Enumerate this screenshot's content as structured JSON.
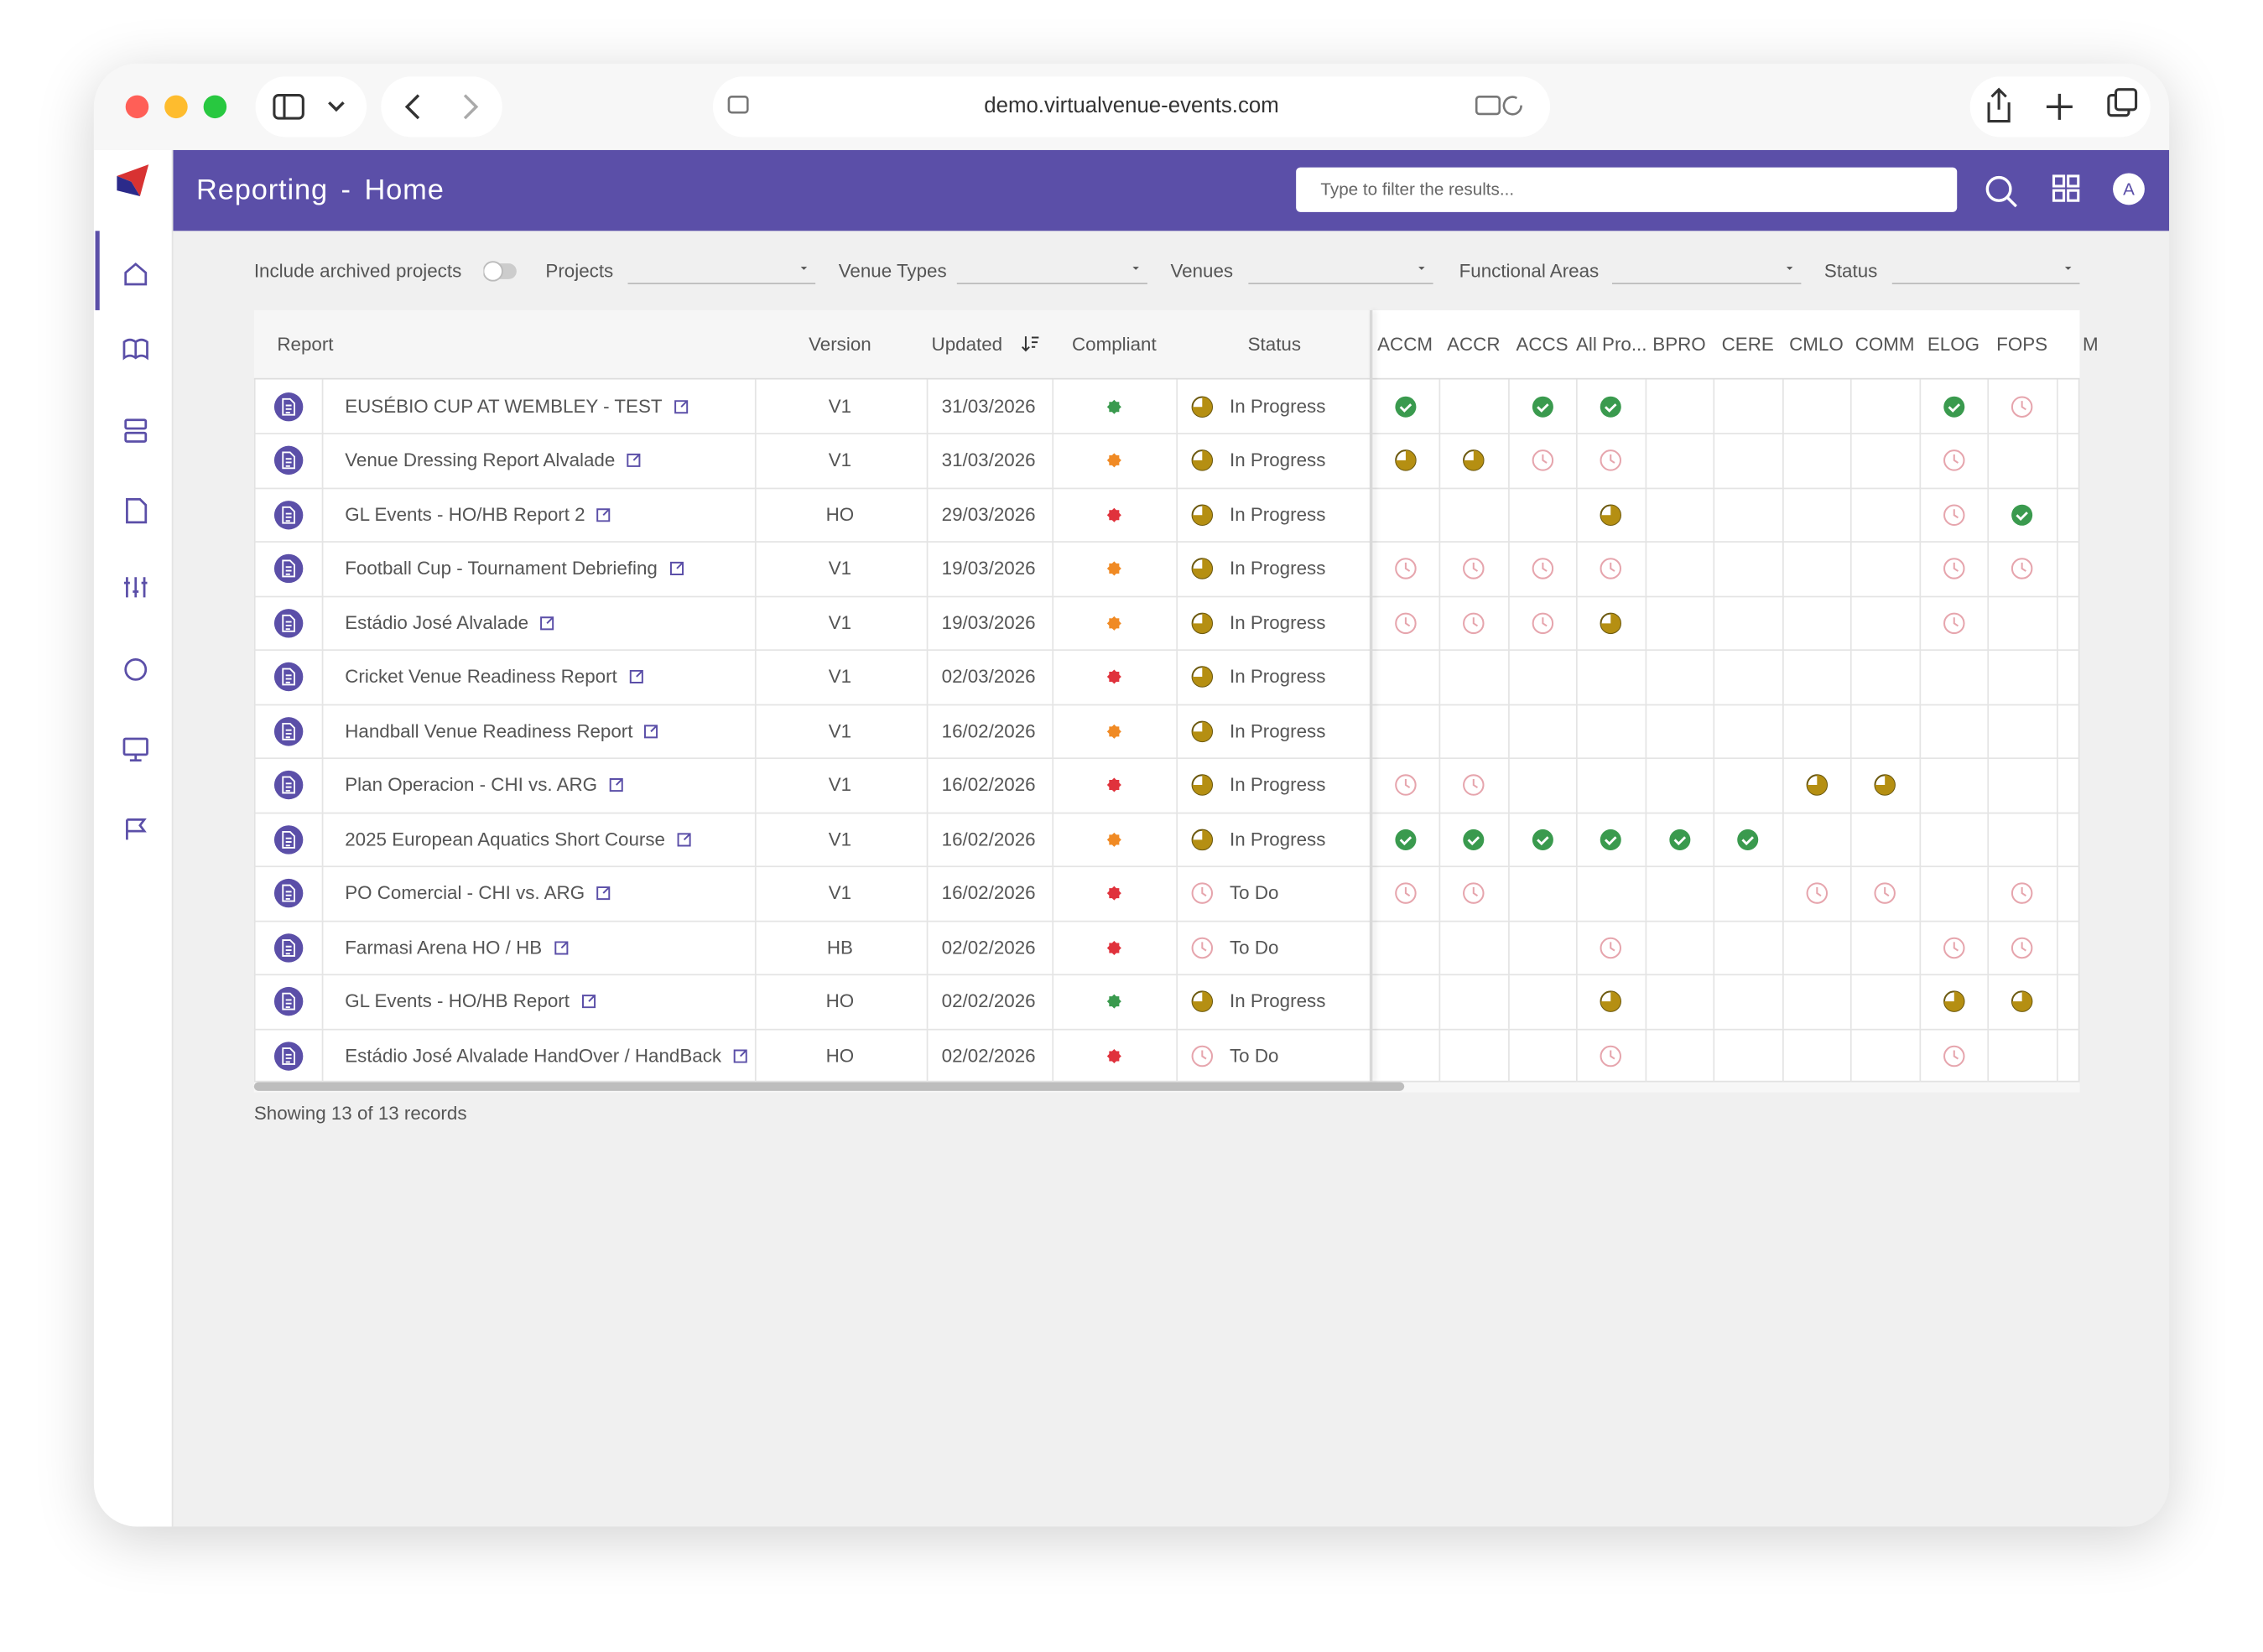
{
  "browser": {
    "url": "demo.virtualvenue-events.com"
  },
  "header": {
    "title": "Reporting - Home",
    "search_placeholder": "Type to filter the results...",
    "avatar": "A"
  },
  "filters": {
    "archived": "Include archived projects",
    "labels": [
      "Projects",
      "Venue Types",
      "Venues",
      "Functional Areas",
      "Status"
    ]
  },
  "table": {
    "columns": [
      "Report",
      "Version",
      "Updated",
      "Compliant",
      "Status"
    ],
    "functional_areas": [
      "ACCM",
      "ACCR",
      "ACCS",
      "All Pro...",
      "BPRO",
      "CERE",
      "CMLO",
      "COMM",
      "ELOG",
      "FOPS",
      "M"
    ],
    "rows": [
      [
        "EUSÉBIO CUP AT WEMBLEY - TEST",
        "V1",
        "31/03/2026",
        "In Progress"
      ],
      [
        "Venue Dressing Report Alvalade",
        "V1",
        "31/03/2026",
        "In Progress"
      ],
      [
        "GL Events - HO/HB Report 2",
        "HO",
        "29/03/2026",
        "In Progress"
      ],
      [
        "Football Cup - Tournament Debriefing",
        "V1",
        "19/03/2026",
        "In Progress"
      ],
      [
        "Estádio José Alvalade",
        "V1",
        "19/03/2026",
        "In Progress"
      ],
      [
        "Cricket Venue Readiness Report",
        "V1",
        "02/03/2026",
        "In Progress"
      ],
      [
        "Handball Venue Readiness Report",
        "V1",
        "16/02/2026",
        "In Progress"
      ],
      [
        "Plan Operacion - CHI vs. ARG",
        "V1",
        "16/02/2026",
        "In Progress"
      ],
      [
        "2025 European Aquatics Short Course",
        "V1",
        "16/02/2026",
        "In Progress"
      ],
      [
        "PO Comercial - CHI vs. ARG",
        "V1",
        "16/02/2026",
        "To Do"
      ],
      [
        "Farmasi Arena HO / HB",
        "HB",
        "02/02/2026",
        "To Do"
      ],
      [
        "GL Events - HO/HB Report",
        "HO",
        "02/02/2026",
        "In Progress"
      ],
      [
        "Estádio José Alvalade HandOver / HandBack",
        "HO",
        "02/02/2026",
        "To Do"
      ]
    ]
  },
  "footer": "Showing 13 of 13 records"
}
